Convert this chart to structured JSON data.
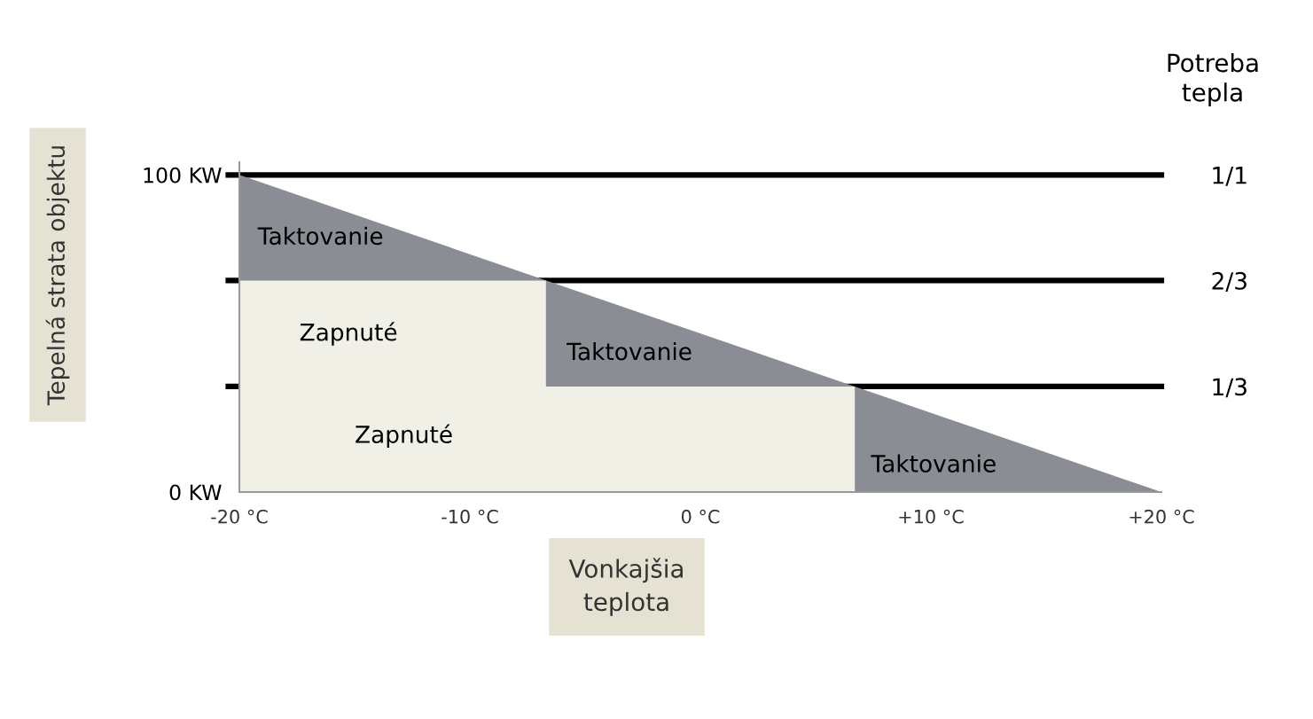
{
  "chart_data": {
    "type": "area",
    "ylabel": "Tepelná strata objektu",
    "xlabel": "Vonkajšia\nteplota",
    "y2label": "Potreba\ntepla",
    "series": [
      {
        "color": "#8b8d95",
        "x": [
          -20,
          20
        ],
        "values": [
          100,
          0
        ]
      },
      {
        "color": "#f1f0e6",
        "x": [
          -20,
          -6.7,
          -6.7,
          6.7,
          6.7
        ],
        "values": [
          66.7,
          66.7,
          33.3,
          33.3,
          0
        ]
      }
    ],
    "xlim": [
      -20,
      20
    ],
    "ylim": [
      0,
      104
    ],
    "xticks": [
      {
        "value": -20,
        "label": "-20 °C"
      },
      {
        "value": -10,
        "label": "-10 °C"
      },
      {
        "value": 0,
        "label": "0 °C"
      },
      {
        "value": 10,
        "label": "+10 °C"
      },
      {
        "value": 20,
        "label": "+20 °C"
      }
    ],
    "yticks": [
      {
        "value": 0,
        "label": "0 KW"
      },
      {
        "value": 100,
        "label": "100 KW"
      }
    ],
    "y2lim": [
      0,
      1.04
    ],
    "y2ticks": [
      {
        "value": 1,
        "label": "1/1"
      },
      {
        "value": 0.667,
        "label": "2/3"
      },
      {
        "value": 0.333,
        "label": "1/3"
      }
    ],
    "ref_lines": [
      {
        "axis": "y2",
        "value": 1,
        "color": "#000000"
      },
      {
        "axis": "y2",
        "value": 0.667,
        "color": "#000000"
      },
      {
        "axis": "y2",
        "value": 0.333,
        "color": "#000000"
      }
    ],
    "annotations": [
      "Taktovanie",
      "Zapnuté",
      "Taktovanie",
      "Zapnuté",
      "Taktovanie"
    ],
    "grid": false,
    "legend": false
  }
}
